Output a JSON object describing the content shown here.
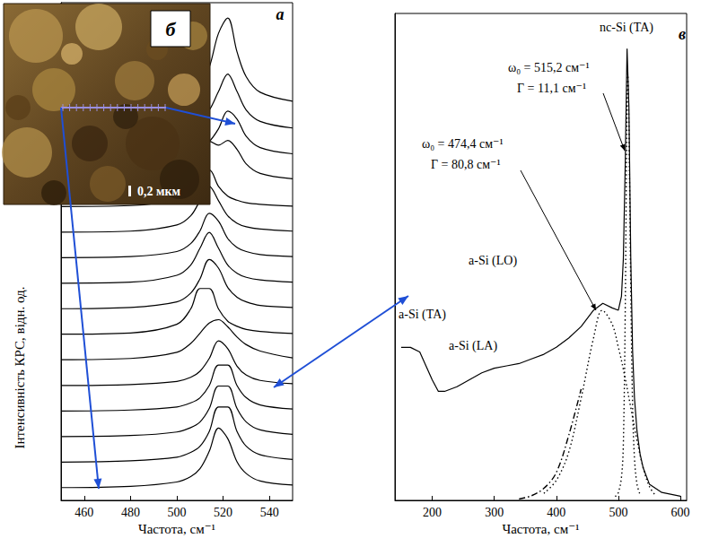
{
  "chart_data": [
    {
      "type": "line",
      "annotations": [
        "а"
      ],
      "xlabel": "Частота, см⁻¹",
      "ylabel": "Інтенсивність КРС, відн. од.",
      "x": [
        450,
        480,
        500,
        506,
        510,
        514,
        518,
        522,
        526,
        530,
        536,
        550
      ],
      "series": [
        {
          "color": "#000000",
          "line_style": "solid",
          "values": [
            17.0,
            17.07,
            17.26,
            17.49,
            17.8,
            18.47,
            19.8,
            20.4,
            19.07,
            18.09,
            17.49,
            17.14
          ]
        },
        {
          "color": "#000000",
          "line_style": "solid",
          "values": [
            16.0,
            16.04,
            16.15,
            16.26,
            16.44,
            16.79,
            17.52,
            18.2,
            17.52,
            16.79,
            16.35,
            16.09
          ]
        },
        {
          "color": "#000000",
          "line_style": "solid",
          "values": [
            15.0,
            15.04,
            15.12,
            15.2,
            15.32,
            15.56,
            16.06,
            16.75,
            16.44,
            15.76,
            15.32,
            15.08
          ]
        },
        {
          "color": "#000000",
          "line_style": "solid",
          "values": [
            14.0,
            14.05,
            14.34,
            14.79,
            15.4,
            15.57,
            15.42,
            15.6,
            15.25,
            14.68,
            14.31,
            14.1
          ]
        },
        {
          "color": "#000000",
          "line_style": "solid",
          "values": [
            13.01,
            13.05,
            13.32,
            13.8,
            14.44,
            14.44,
            13.8,
            13.42,
            13.26,
            13.16,
            13.1,
            13.03
          ]
        },
        {
          "color": "#000000",
          "line_style": "solid",
          "values": [
            12.01,
            12.05,
            12.29,
            12.65,
            13.24,
            13.8,
            13.24,
            12.65,
            12.36,
            12.22,
            12.13,
            12.05
          ]
        },
        {
          "color": "#000000",
          "line_style": "solid",
          "values": [
            11.01,
            11.05,
            11.25,
            11.56,
            12.06,
            12.75,
            12.44,
            11.76,
            11.41,
            11.25,
            11.13,
            11.05
          ]
        },
        {
          "color": "#000000",
          "line_style": "solid",
          "values": [
            10.01,
            10.05,
            10.32,
            10.72,
            11.38,
            12.0,
            11.38,
            10.72,
            10.4,
            10.24,
            10.14,
            10.05
          ]
        },
        {
          "color": "#000000",
          "line_style": "solid",
          "values": [
            9.01,
            9.06,
            9.28,
            9.62,
            10.18,
            10.94,
            10.6,
            9.84,
            9.46,
            9.28,
            9.14,
            9.06
          ]
        },
        {
          "color": "#000000",
          "line_style": "solid",
          "values": [
            8.01,
            8.06,
            8.4,
            9.0,
            9.8,
            9.8,
            9.0,
            8.52,
            8.32,
            8.2,
            8.12,
            8.04
          ]
        },
        {
          "color": "#000000",
          "line_style": "solid",
          "values": [
            7.01,
            7.06,
            7.3,
            7.65,
            8.05,
            8.45,
            8.58,
            8.3,
            7.9,
            7.6,
            7.35,
            7.08
          ]
        },
        {
          "color": "#000000",
          "line_style": "solid",
          "values": [
            6.0,
            6.04,
            6.16,
            6.32,
            6.56,
            7.06,
            7.75,
            7.44,
            6.76,
            6.41,
            6.2,
            6.07
          ]
        },
        {
          "color": "#000000",
          "line_style": "solid",
          "values": [
            5.0,
            5.04,
            5.16,
            5.32,
            5.52,
            6.0,
            6.8,
            6.8,
            6.0,
            5.52,
            5.24,
            5.08
          ]
        },
        {
          "color": "#000000",
          "line_style": "solid",
          "values": [
            4.0,
            4.04,
            4.18,
            4.35,
            4.57,
            5.1,
            5.98,
            5.98,
            5.1,
            4.57,
            4.26,
            4.09
          ]
        },
        {
          "color": "#000000",
          "line_style": "solid",
          "values": [
            3.0,
            3.05,
            3.19,
            3.38,
            3.62,
            4.2,
            5.16,
            5.16,
            4.2,
            3.62,
            3.29,
            3.1
          ]
        },
        {
          "color": "#000000",
          "line_style": "solid",
          "values": [
            2.0,
            2.05,
            2.22,
            2.43,
            2.74,
            3.42,
            4.33,
            3.92,
            3.01,
            2.55,
            2.26,
            2.1
          ]
        }
      ],
      "xlim": [
        450,
        550
      ],
      "xticks": [
        460,
        480,
        500,
        520,
        540
      ],
      "ylim": [
        1.5,
        21
      ],
      "tick_labels": "x",
      "grid": false
    },
    {
      "type": "line",
      "annotations": [
        "в",
        "nc-Si (TA)",
        "ω₀ = 515,2 см⁻¹",
        "Γ = 11,1 см⁻¹",
        "ω₀ = 474,4 см⁻¹",
        "Γ = 80,8 см⁻¹",
        "a-Si (LO)",
        "a-Si (TA)",
        "a-Si (LA)"
      ],
      "xlabel": "Частота, см⁻¹",
      "series": [
        {
          "color": "#000000",
          "line_style": "solid",
          "x": [
            150,
            165,
            180,
            190,
            200,
            210,
            220,
            240,
            260,
            280,
            300,
            320,
            340,
            360,
            380,
            400,
            420,
            440,
            460,
            475,
            490,
            500,
            505,
            508,
            511,
            514,
            517,
            520,
            523,
            526,
            530,
            535,
            540,
            550,
            570,
            600
          ],
          "values": [
            33,
            33,
            32,
            29,
            26,
            23.5,
            23.5,
            24.5,
            26,
            27.5,
            28.5,
            29,
            29.5,
            30.5,
            31.5,
            33,
            35,
            37.5,
            41,
            42.5,
            41.5,
            41,
            44,
            52,
            72,
            97.4,
            85,
            52,
            32,
            22,
            15,
            10,
            7,
            3.5,
            1.7,
            0.9
          ]
        },
        {
          "color": "#000000",
          "line_style": "dotted",
          "x": [
            380,
            400,
            420,
            440,
            460,
            474,
            490,
            500,
            510,
            520,
            530,
            540,
            550,
            560
          ],
          "values": [
            1.5,
            4.3,
            10.4,
            22,
            35,
            41,
            38,
            33,
            27,
            20,
            13,
            7,
            3,
            1
          ]
        },
        {
          "color": "#000000",
          "line_style": "dotted",
          "x": [
            495,
            500,
            505,
            508,
            511,
            514,
            515,
            517,
            520,
            523,
            526,
            530,
            535
          ],
          "values": [
            0.8,
            1.7,
            5,
            12,
            40,
            88,
            92,
            80,
            46,
            20,
            9,
            3.5,
            1.2
          ]
        },
        {
          "color": "#000000",
          "line_style": "dashdot",
          "x": [
            340,
            360,
            380,
            400,
            420,
            440
          ],
          "values": [
            0.3,
            1,
            2.6,
            6,
            14,
            24
          ]
        }
      ],
      "xlim": [
        140,
        610
      ],
      "xticks": [
        200,
        300,
        400,
        500,
        600
      ],
      "ylim": [
        0,
        105
      ],
      "tick_labels": "x",
      "grid": false
    }
  ],
  "inset": {
    "label": "б",
    "scale_bar": "0,2 мкм"
  }
}
